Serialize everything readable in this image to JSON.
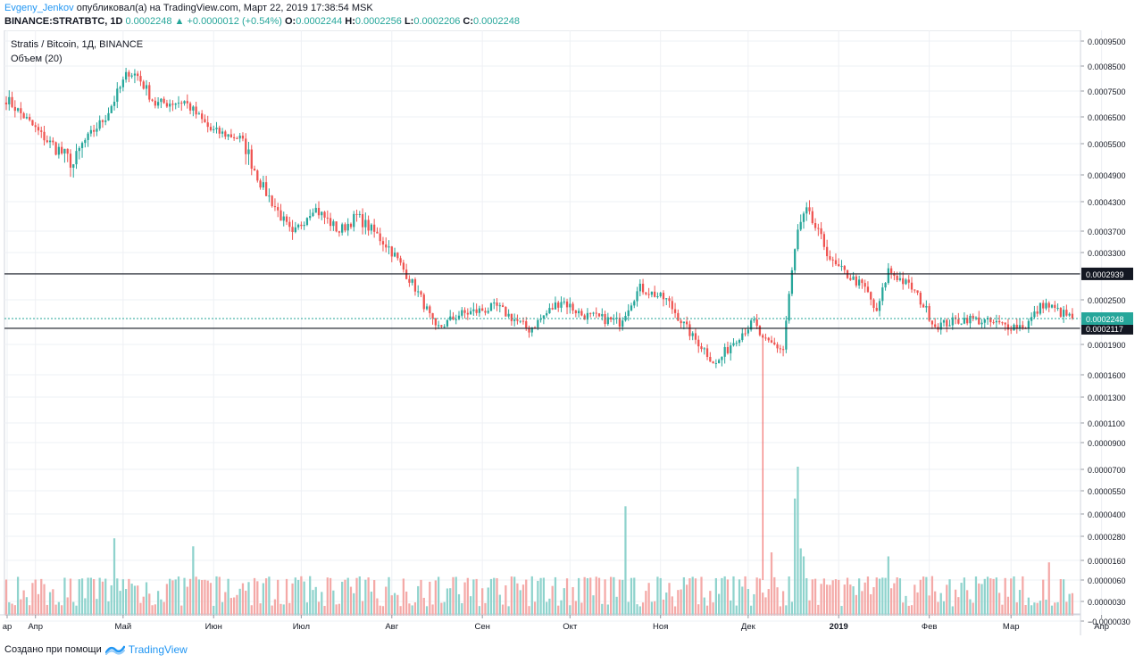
{
  "header": {
    "author": "Evgeny_Jenkov",
    "published": "опубликовал(а) на TradingView.com, Март 22, 2019 17:38:54 MSK",
    "symbol": "BINANCE:STRATBTC, 1D",
    "last": "0.0002248",
    "change": "+0.0000012 (+0.54%)",
    "o_label": "O:",
    "o": "0.0002244",
    "h_label": "H:",
    "h": "0.0002256",
    "l_label": "L:",
    "l": "0.0002206",
    "c_label": "C:",
    "c": "0.0002248"
  },
  "legend": {
    "title": "Stratis / Bitcoin, 1Д, BINANCE",
    "volume": "Объем (20)"
  },
  "footer": {
    "created": "Создано при помощи",
    "brand": "TradingView"
  },
  "colors": {
    "up": "#26a69a",
    "down": "#ef5350",
    "vol_up": "#8fd3cd",
    "vol_down": "#f4a9a7",
    "grid": "#eef0f4",
    "axis": "#9598a1",
    "hline": "#131722",
    "last_line": "#26a69a"
  },
  "chart_data": {
    "type": "candlestick",
    "title": "Stratis / Bitcoin, 1Д, BINANCE",
    "period_start": "2018-03-22",
    "period_end": "2019-03-22",
    "y_ticks": [
      "0.0009500",
      "0.0008500",
      "0.0007500",
      "0.0006500",
      "0.0005500",
      "0.0004900",
      "0.0004300",
      "0.0003700",
      "0.0003300",
      "0.0002500",
      "0.0001900",
      "0.0001600",
      "0.0001300",
      "0.0001100",
      "0.0000900",
      "0.0000700",
      "0.0000550",
      "0.0000400",
      "0.0000280",
      "0.0000160",
      "0.0000060",
      "0.0000030",
      "−0.0000030"
    ],
    "x_ticks": [
      "ар",
      "Апр",
      "Май",
      "Июн",
      "Июл",
      "Авг",
      "Сен",
      "Окт",
      "Ноя",
      "Дек",
      "2019",
      "Фев",
      "Мар",
      "Апр"
    ],
    "x_tick_bold": [
      false,
      false,
      false,
      false,
      false,
      false,
      false,
      false,
      false,
      false,
      true,
      false,
      false,
      false
    ],
    "horizontal_lines": [
      {
        "value": 0.0002939,
        "label": "0.0002939",
        "style": "solid"
      },
      {
        "value": 0.0002117,
        "label": "0.0002117",
        "style": "solid"
      }
    ],
    "last_price": {
      "value": 0.0002248,
      "label": "0.0002248",
      "style": "dotted"
    },
    "price_path": [
      [
        "2018-03-22",
        0.00072
      ],
      [
        "2018-04-05",
        0.00056
      ],
      [
        "2018-04-14",
        0.00051
      ],
      [
        "2018-04-25",
        0.00065
      ],
      [
        "2018-05-03",
        0.00083
      ],
      [
        "2018-05-06",
        0.00081
      ],
      [
        "2018-05-12",
        0.0007
      ],
      [
        "2018-05-22",
        0.00071
      ],
      [
        "2018-05-31",
        0.0006
      ],
      [
        "2018-06-10",
        0.00057
      ],
      [
        "2018-06-18",
        0.00046
      ],
      [
        "2018-06-28",
        0.00036
      ],
      [
        "2018-07-05",
        0.00042
      ],
      [
        "2018-07-14",
        0.00037
      ],
      [
        "2018-07-20",
        0.0004
      ],
      [
        "2018-07-31",
        0.00034
      ],
      [
        "2018-08-09",
        0.00027
      ],
      [
        "2018-08-16",
        0.00021
      ],
      [
        "2018-08-24",
        0.00023
      ],
      [
        "2018-09-06",
        0.00024
      ],
      [
        "2018-09-17",
        0.00021
      ],
      [
        "2018-09-28",
        0.00025
      ],
      [
        "2018-10-05",
        0.00023
      ],
      [
        "2018-10-18",
        0.00022
      ],
      [
        "2018-10-25",
        0.00027
      ],
      [
        "2018-11-03",
        0.00025
      ],
      [
        "2018-11-12",
        0.0002
      ],
      [
        "2018-11-20",
        0.00017
      ],
      [
        "2018-11-30",
        0.00021
      ],
      [
        "2018-12-03",
        0.00022
      ],
      [
        "2018-12-06",
        0.000195
      ],
      [
        "2018-12-13",
        0.000185
      ],
      [
        "2018-12-18",
        0.00037
      ],
      [
        "2018-12-21",
        0.00041
      ],
      [
        "2018-12-30",
        0.00031
      ],
      [
        "2019-01-10",
        0.00027
      ],
      [
        "2019-01-14",
        0.00023
      ],
      [
        "2019-01-18",
        0.0003
      ],
      [
        "2019-01-26",
        0.00027
      ],
      [
        "2019-02-03",
        0.000215
      ],
      [
        "2019-02-14",
        0.000225
      ],
      [
        "2019-02-28",
        0.000215
      ],
      [
        "2019-03-06",
        0.000215
      ],
      [
        "2019-03-12",
        0.000245
      ],
      [
        "2019-03-22",
        0.0002248
      ]
    ],
    "volume_spikes": [
      [
        "2018-04-28",
        2.7e-05
      ],
      [
        "2018-05-25",
        2.3e-05
      ],
      [
        "2018-10-20",
        4.5e-05
      ],
      [
        "2018-12-09",
        2e-05
      ],
      [
        "2018-12-17",
        5e-05
      ],
      [
        "2018-12-18",
        7.2e-05
      ],
      [
        "2018-12-19",
        2.2e-05
      ],
      [
        "2018-12-20",
        1.8e-05
      ],
      [
        "2019-01-18",
        1.8e-05
      ],
      [
        "2019-03-14",
        1.5e-05
      ]
    ],
    "spike_wick": {
      "date": "2018-12-06",
      "low": 6e-06
    }
  }
}
